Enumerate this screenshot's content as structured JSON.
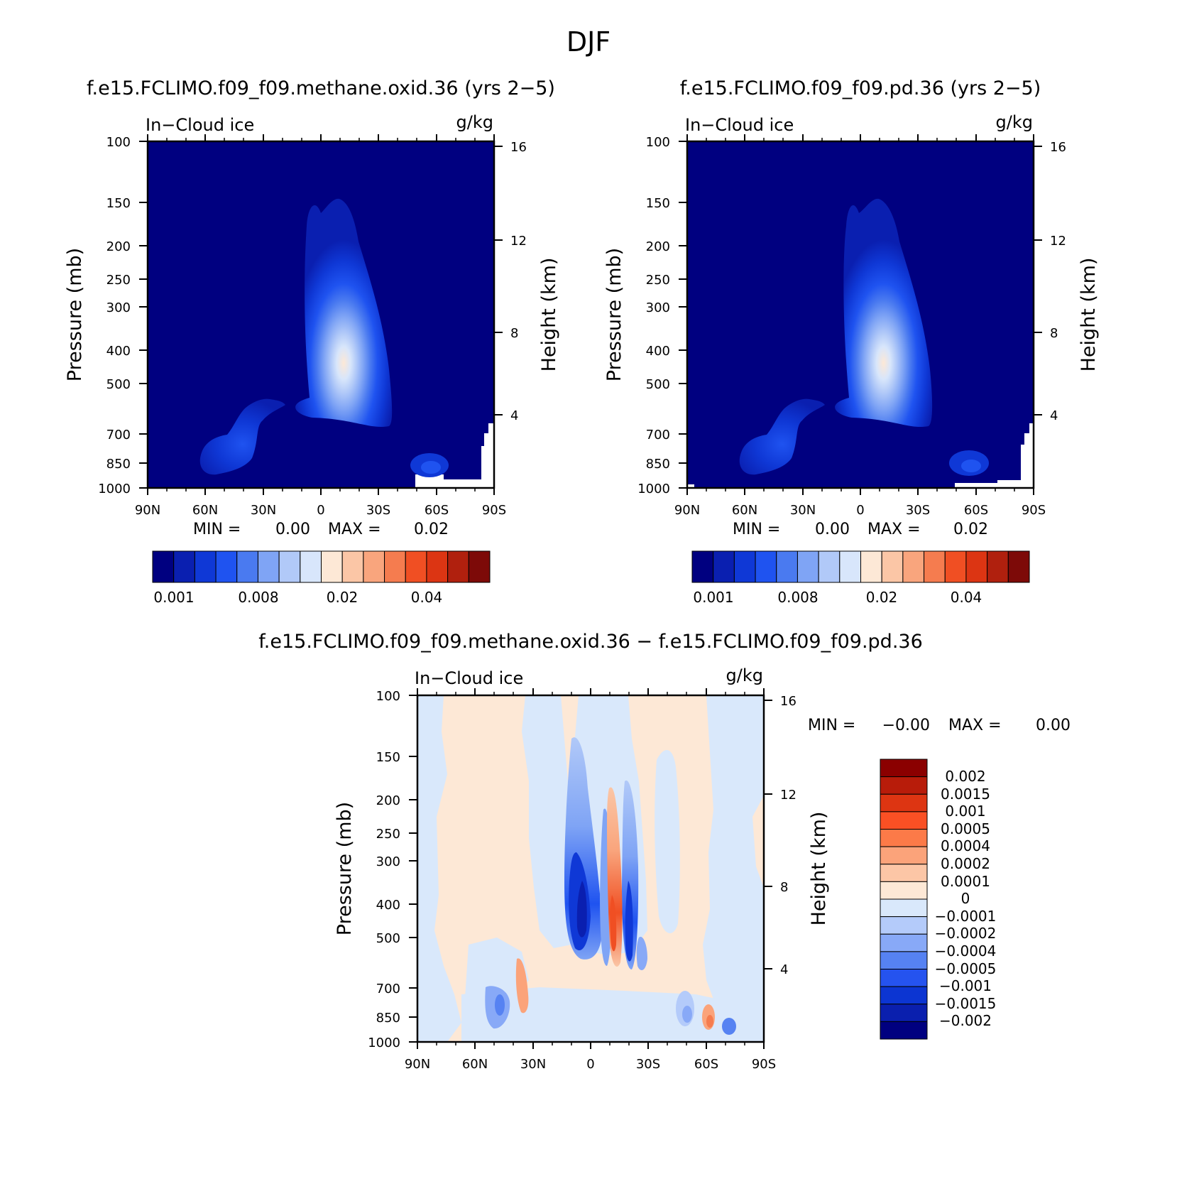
{
  "figure_title": "DJF",
  "chart_data": [
    {
      "type": "contour",
      "id": "control",
      "title": "f.e15.FCLIMO.f09_f09.methane.oxid.36 (yrs 2−5)",
      "variable": "In−Cloud ice",
      "units": "g/kg",
      "ylabel": "Pressure (mb)",
      "y2label": "Height (km)",
      "xticks": [
        "90N",
        "60N",
        "30N",
        "0",
        "30S",
        "60S",
        "90S"
      ],
      "yticks": [
        100,
        150,
        200,
        250,
        300,
        400,
        500,
        700,
        850,
        1000
      ],
      "y2ticks": [
        16,
        12,
        8,
        4
      ],
      "min_label": "MIN =",
      "min_value": "0.00",
      "max_label": "MAX =",
      "max_value": "0.02",
      "colorbar_labels": [
        "0.001",
        "0.008",
        "0.02",
        "0.04"
      ],
      "colors": [
        "#000080",
        "#0a1fb0",
        "#0f38d6",
        "#1f53f0",
        "#4a7af0",
        "#7fa4f5",
        "#b1c9f8",
        "#d8e6fb",
        "#fde8d6",
        "#fbc6a6",
        "#f9a57d",
        "#f57c4f",
        "#f04f23",
        "#dc3513",
        "#b0200e",
        "#7d0a08"
      ]
    },
    {
      "type": "contour",
      "id": "test",
      "title": "f.e15.FCLIMO.f09_f09.pd.36 (yrs 2−5)",
      "variable": "In−Cloud ice",
      "units": "g/kg",
      "ylabel": "Pressure (mb)",
      "y2label": "Height (km)",
      "xticks": [
        "90N",
        "60N",
        "30N",
        "0",
        "30S",
        "60S",
        "90S"
      ],
      "yticks": [
        100,
        150,
        200,
        250,
        300,
        400,
        500,
        700,
        850,
        1000
      ],
      "y2ticks": [
        16,
        12,
        8,
        4
      ],
      "min_label": "MIN =",
      "min_value": "0.00",
      "max_label": "MAX =",
      "max_value": "0.02",
      "colorbar_labels": [
        "0.001",
        "0.008",
        "0.02",
        "0.04"
      ],
      "colors": [
        "#000080",
        "#0a1fb0",
        "#0f38d6",
        "#1f53f0",
        "#4a7af0",
        "#7fa4f5",
        "#b1c9f8",
        "#d8e6fb",
        "#fde8d6",
        "#fbc6a6",
        "#f9a57d",
        "#f57c4f",
        "#f04f23",
        "#dc3513",
        "#b0200e",
        "#7d0a08"
      ]
    },
    {
      "type": "contour",
      "id": "difference",
      "title": "f.e15.FCLIMO.f09_f09.methane.oxid.36 − f.e15.FCLIMO.f09_f09.pd.36",
      "variable": "In−Cloud ice",
      "units": "g/kg",
      "ylabel": "Pressure (mb)",
      "y2label": "Height (km)",
      "xticks": [
        "90N",
        "60N",
        "30N",
        "0",
        "30S",
        "60S",
        "90S"
      ],
      "yticks": [
        100,
        150,
        200,
        250,
        300,
        400,
        500,
        700,
        850,
        1000
      ],
      "y2ticks": [
        16,
        12,
        8,
        4
      ],
      "min_label": "MIN =",
      "min_value": "−0.00",
      "max_label": "MAX =",
      "max_value": "0.00",
      "colorbar_labels": [
        "0.002",
        "0.0015",
        "0.001",
        "0.0005",
        "0.0004",
        "0.0002",
        "0.0001",
        "0",
        "−0.0001",
        "−0.0002",
        "−0.0004",
        "−0.0005",
        "−0.001",
        "−0.0015",
        "−0.002"
      ],
      "colors": [
        "#8b0000",
        "#b81c0a",
        "#dd3512",
        "#fa5024",
        "#fc7a48",
        "#fba37a",
        "#fcc6a6",
        "#fde8d6",
        "#d9e8fb",
        "#b4cbfa",
        "#88a9f7",
        "#5682f2",
        "#2553ef",
        "#0c35d2",
        "#0a1fae",
        "#000080"
      ]
    }
  ]
}
